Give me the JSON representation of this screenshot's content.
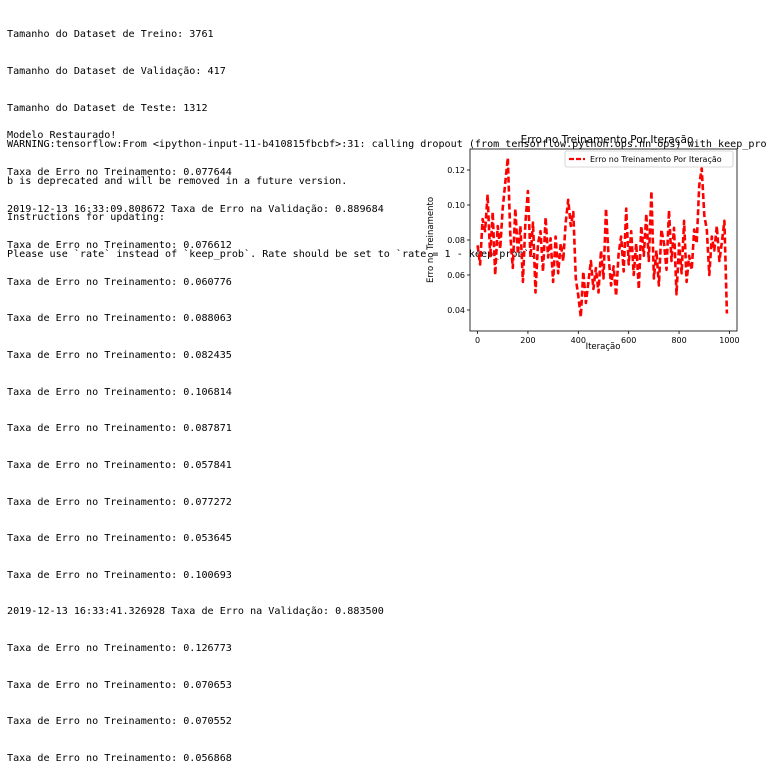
{
  "output": {
    "header_lines": [
      "Tamanho do Dataset de Treino: 3761",
      "Tamanho do Dataset de Validação: 417",
      "Tamanho do Dataset de Teste: 1312",
      "WARNING:tensorflow:From <ipython-input-11-b410815fbcbf>:31: calling dropout (from tensorflow.python.ops.nn_ops) with keep_pro",
      "b is deprecated and will be removed in a future version.",
      "Instructions for updating:",
      "Please use `rate` instead of `keep_prob`. Rate should be set to `rate = 1 - keep_prob`."
    ],
    "log_lines": [
      "Modelo Restaurado!",
      "Taxa de Erro no Treinamento: 0.077644",
      "2019-12-13 16:33:09.808672 Taxa de Erro na Validação: 0.889684",
      "Taxa de Erro no Treinamento: 0.076612",
      "Taxa de Erro no Treinamento: 0.060776",
      "Taxa de Erro no Treinamento: 0.088063",
      "Taxa de Erro no Treinamento: 0.082435",
      "Taxa de Erro no Treinamento: 0.106814",
      "Taxa de Erro no Treinamento: 0.087871",
      "Taxa de Erro no Treinamento: 0.057841",
      "Taxa de Erro no Treinamento: 0.077272",
      "Taxa de Erro no Treinamento: 0.053645",
      "Taxa de Erro no Treinamento: 0.100693",
      "2019-12-13 16:33:41.326928 Taxa de Erro na Validação: 0.883500",
      "Taxa de Erro no Treinamento: 0.126773",
      "Taxa de Erro no Treinamento: 0.070653",
      "Taxa de Erro no Treinamento: 0.070552",
      "Taxa de Erro no Treinamento: 0.056868"
    ]
  },
  "chart_data": {
    "type": "line",
    "title": "Erro no Treinamento Por Iteração",
    "xlabel": "Iteração",
    "ylabel": "Erro no Treinamento",
    "xlim": [
      -30,
      1030
    ],
    "ylim": [
      0.028,
      0.132
    ],
    "xticks": [
      0,
      200,
      400,
      600,
      800,
      1000
    ],
    "yticks": [
      0.04,
      0.06,
      0.08,
      0.1,
      0.12
    ],
    "ytick_labels": [
      "0.04",
      "0.06",
      "0.08",
      "0.10",
      "0.12"
    ],
    "legend_placement": "top-right",
    "line_style": "dashed",
    "line_color": "#ff0000",
    "series": [
      {
        "name": "Erro no Treinamento Por Iteração",
        "x": [
          0,
          10,
          20,
          30,
          40,
          50,
          60,
          70,
          80,
          90,
          100,
          110,
          120,
          130,
          140,
          150,
          160,
          170,
          180,
          190,
          200,
          210,
          220,
          230,
          240,
          250,
          260,
          270,
          280,
          290,
          300,
          310,
          320,
          330,
          340,
          350,
          360,
          370,
          380,
          390,
          400,
          410,
          420,
          430,
          440,
          450,
          460,
          470,
          480,
          490,
          500,
          510,
          520,
          530,
          540,
          550,
          560,
          570,
          580,
          590,
          600,
          610,
          620,
          630,
          640,
          650,
          660,
          670,
          680,
          690,
          700,
          710,
          720,
          730,
          740,
          750,
          760,
          770,
          780,
          790,
          800,
          810,
          820,
          830,
          840,
          850,
          860,
          870,
          880,
          890,
          900,
          910,
          920,
          930,
          940,
          950,
          960,
          970,
          980,
          990
        ],
        "values": [
          0.077,
          0.066,
          0.092,
          0.085,
          0.106,
          0.07,
          0.096,
          0.06,
          0.088,
          0.075,
          0.098,
          0.113,
          0.127,
          0.083,
          0.064,
          0.098,
          0.072,
          0.088,
          0.056,
          0.09,
          0.108,
          0.07,
          0.09,
          0.05,
          0.078,
          0.085,
          0.062,
          0.093,
          0.07,
          0.081,
          0.056,
          0.082,
          0.061,
          0.078,
          0.068,
          0.09,
          0.103,
          0.088,
          0.096,
          0.058,
          0.048,
          0.036,
          0.062,
          0.044,
          0.056,
          0.068,
          0.052,
          0.064,
          0.05,
          0.074,
          0.058,
          0.098,
          0.071,
          0.054,
          0.065,
          0.048,
          0.072,
          0.082,
          0.062,
          0.098,
          0.066,
          0.085,
          0.06,
          0.078,
          0.052,
          0.088,
          0.071,
          0.095,
          0.068,
          0.108,
          0.058,
          0.074,
          0.054,
          0.086,
          0.078,
          0.063,
          0.097,
          0.068,
          0.087,
          0.049,
          0.078,
          0.061,
          0.091,
          0.056,
          0.071,
          0.063,
          0.086,
          0.078,
          0.111,
          0.121,
          0.094,
          0.086,
          0.06,
          0.082,
          0.074,
          0.088,
          0.068,
          0.079,
          0.091,
          0.038
        ]
      }
    ]
  }
}
